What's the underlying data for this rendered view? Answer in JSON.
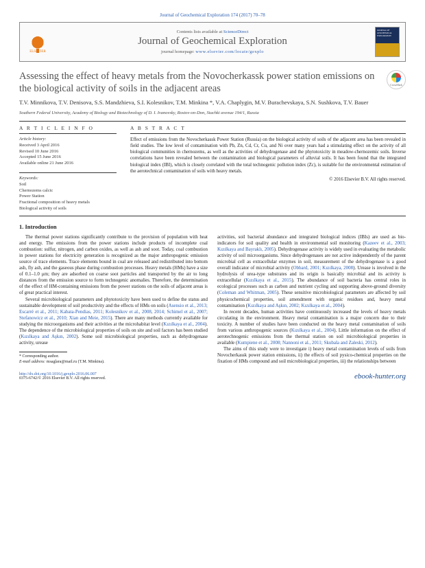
{
  "journal_ref": "Journal of Geochemical Exploration 174 (2017) 70–78",
  "contents_text": "Contents lists available at ",
  "sciencedirect": "ScienceDirect",
  "journal_name": "Journal of Geochemical Exploration",
  "homepage_prefix": "journal homepage: ",
  "homepage_url": "www.elsevier.com/locate/gexplo",
  "elsevier_label": "ELSEVIER",
  "cover_text": "JOURNAL OF GEOCHEMICAL EXPLORATION",
  "crossmark": "CrossMark",
  "title": "Assessing the effect of heavy metals from the Novocherkassk power station emissions on the biological activity of soils in the adjacent areas",
  "authors": "T.V. Minnikova, T.V. Denisova, S.S. Mandzhieva, S.I. Kolesnikov, T.M. Minkina *, V.A. Chaplygin, M.V. Burachevskaya, S.N. Sushkova, T.V. Bauer",
  "affiliation": "Southern Federal University, Academy of Biology and Biotechnology of D. I. Ivanovsky, Rostov-on-Don, Stachki avenue 194/1, Russia",
  "labels": {
    "article_info": "A R T I C L E   I N F O",
    "abstract": "A B S T R A C T",
    "article_history": "Article history:",
    "keywords": "Keywords:"
  },
  "history": {
    "received": "Received 3 April 2016",
    "revised": "Revised 10 June 2016",
    "accepted": "Accepted 15 June 2016",
    "online": "Available online 21 June 2016"
  },
  "keywords": [
    "Soil",
    "Chernozems calcic",
    "Power Station",
    "Fractional composition of heavy metals",
    "Biological activity of soils"
  ],
  "abstract": "Effect of emissions from the Novocherkassk Power Station (Russia) on the biological activity of soils of the adjacent area has been revealed in field studies. The low level of contamination with Pb, Zn, Cd, Cr, Cu, and Ni over many years had a stimulating effect on the activity of all biological communities in chernozems, as well as the activities of dehydrogenase and the phytotoxicity in meadow-chernozemic soils. Inverse correlations have been revealed between the contamination and biological parameters of alluvial soils. It has been found that the integrated biological index (IBI), which is closely correlated with the total technogenic pollution index (Zc), is suitable for the environmental estimation of the aerotechnical contamination of soils with heavy metals.",
  "copyright": "© 2016 Elsevier B.V. All rights reserved.",
  "intro_heading": "1. Introduction",
  "para1": "The thermal power stations significantly contribute to the provision of population with heat and energy. The emissions from the power stations include products of incomplete coal combustion: sulfur, nitrogen, and carbon oxides, as well as ash and soot. Today, coal combustion in power stations for electricity generation is recognized as the major anthropogenic emission source of trace elements. Trace elements bound in coal are released and redistributed into bottom ash, fly ash, and the gaseous phase during combustion processes. Heavy metals (HMs) have a size of 0.1–1.0 μm; they are adsorbed on coarse soot particles and transported by the air to long distances from the emission source to form technogenic anomalies. Therefore, the determination of the effect of HM-containing emissions from the power stations on the soils of adjacent areas is of great practical interest.",
  "para2a": "Several microbiological parameters and phytotoxicity have been used to define the status and sustainable development of soil productivity and the effects of HMs on soils (",
  "cite2": "Asensio et al., 2013; Escarré et al., 2011; Kabata-Pendias, 2011; Kolesnikov et al., 2008, 2014; Schimel et al., 2007; Stefanowicz et al., 2010; Xian and Meie, 2015",
  "para2b": "). There are many methods currently available for studying the microorganisms and their activities at the microhabitat level (",
  "cite2b": "Kızılkaya et al., 2004",
  "para2c": "). The dependence of the microbiological properties of soils on site and soil factors has been studied (",
  "cite2c": "Kızılkaya and Aşkın, 2002",
  "para2d": "). Some soil microbiological properties, such as dehydrogenase activity, urease",
  "para3a": "activities, soil bacterial abundance and integrated biological indices (IBIs) are used as bio-indicators for soil quality and health in environmental soil monitoring (",
  "cite3a": "Kazeev et al., 2003; Kızılkaya and Bayraklı, 2005",
  "para3b": "). Dehydrogenase activity is widely used in evaluating the metabolic activity of soil microorganisms. Since dehydrogenases are not active independently of the parent microbial cell as extracellular enzymes in soil, measurement of the dehydrogenase is a good overall indicator of microbial activity (",
  "cite3b": "Obbard, 2001; Kızılkaya, 2008",
  "para3c": "). Urease is involved in the hydrolysis of urea-type substrates and its origin is basically microbial and its activity is extracellular (",
  "cite3c": "Kızılkaya et al., 2015",
  "para3d": "). The abundance of soil bacteria has central roles in ecological processes such as carbon and nutrient cycling and supporting above-ground diversity (",
  "cite3d": "Coleman and Whitman, 2005",
  "para3e": "). These sensitive microbiological parameters are affected by soil physicochemical properties, soil amendment with organic residues and, heavy metal contamination (",
  "cite3e": "Kızılkaya and Aşkın, 2002; Kızılkaya et al., 2004",
  "para3f": ").",
  "para4a": "In recent decades, human activities have continuously increased the levels of heavy metals circulating in the environment. Heavy metal contamination is a major concern due to their toxicity. A number of studies have been conducted on the heavy metal contamination of soils from various anthropogenic sources (",
  "cite4a": "Kızılkaya et al., 2004",
  "para4b": "). Little information on the effect of aerotechnogenic emissions from the thermal station on soil microbiological properties in available (",
  "cite4b": "Kumpiene et al., 2008; Nannoni et al., 2011; Skubala and Zaleski, 2012",
  "para4c": ").",
  "para5": "The aims of this study were to investigate i) heavy metal contamination levels of soils from Novocherkassk power station emissions, ii) the effects of soil pysico-chemical properties on the fixation of HMs compound and soil microbiological properties, iii) the relationships between",
  "footnote": {
    "corr": "* Corresponding author.",
    "email_label": "E-mail address: ",
    "email": "msaglara@mail.ru",
    "email_suffix": " (T.M. Minkina)."
  },
  "footer": {
    "doi": "http://dx.doi.org/10.1016/j.gexplo.2016.06.007",
    "issn": "0375-6742/© 2016 Elsevier B.V. All rights reserved.",
    "site": "ebook-hunter.org"
  }
}
